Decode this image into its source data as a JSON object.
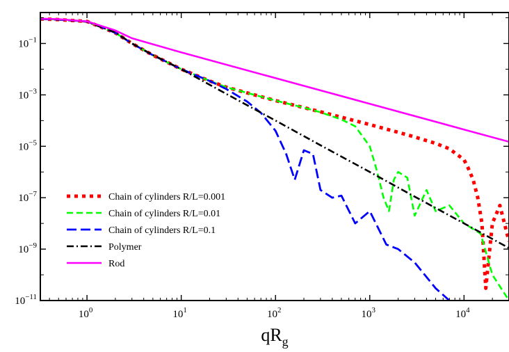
{
  "chart_data": {
    "type": "line",
    "xlabel": {
      "main": "qR",
      "sub": "g"
    },
    "ylabel": "",
    "x_scale": "log",
    "y_scale": "log",
    "xlim": [
      0.32,
      30000
    ],
    "ylim": [
      1e-11,
      1.6
    ],
    "grid": false,
    "legend_position": "lower-left",
    "x_ticks": [
      {
        "value": 1,
        "base": "10",
        "exp": "0"
      },
      {
        "value": 10,
        "base": "10",
        "exp": "1"
      },
      {
        "value": 100,
        "base": "10",
        "exp": "2"
      },
      {
        "value": 1000,
        "base": "10",
        "exp": "3"
      },
      {
        "value": 10000,
        "base": "10",
        "exp": "4"
      }
    ],
    "y_ticks": [
      {
        "value": 1e-11,
        "base": "10",
        "exp": "−11"
      },
      {
        "value": 1e-09,
        "base": "10",
        "exp": "−9"
      },
      {
        "value": 1e-07,
        "base": "10",
        "exp": "−7"
      },
      {
        "value": 1e-05,
        "base": "10",
        "exp": "−5"
      },
      {
        "value": 0.001,
        "base": "10",
        "exp": "−3"
      },
      {
        "value": 0.1,
        "base": "10",
        "exp": "−1"
      }
    ],
    "series": [
      {
        "name": "Chain of cylinders R/L=0.001",
        "color": "#ff0000",
        "dash": "dotted-thick",
        "x": [
          0.32,
          0.5,
          1,
          2,
          3,
          5,
          10,
          20,
          30,
          50,
          100,
          200,
          300,
          500,
          1000,
          2000,
          3000,
          5000,
          7000,
          10000,
          11000,
          12500,
          14000,
          15500,
          17000,
          20000,
          24000,
          30000
        ],
        "y": [
          0.9,
          0.85,
          0.72,
          0.26,
          0.1,
          0.035,
          0.01,
          0.0035,
          0.002,
          0.0012,
          0.0006,
          0.00032,
          0.00022,
          0.000135,
          7e-05,
          3.5e-05,
          2.3e-05,
          1.3e-05,
          8e-06,
          3e-06,
          1.5e-06,
          5e-07,
          1e-07,
          1e-08,
          3e-11,
          1e-08,
          5e-08,
          2e-09
        ]
      },
      {
        "name": "Chain of cylinders R/L=0.01",
        "color": "#00ff00",
        "dash": "dashed",
        "x": [
          0.32,
          0.5,
          1,
          2,
          3,
          5,
          10,
          20,
          30,
          50,
          100,
          200,
          300,
          500,
          700,
          1000,
          1200,
          1400,
          1600,
          1800,
          2000,
          2500,
          3000,
          4000,
          5000,
          7000,
          10000,
          15000,
          20000,
          30000
        ],
        "y": [
          0.9,
          0.85,
          0.72,
          0.26,
          0.1,
          0.035,
          0.01,
          0.0035,
          0.002,
          0.0012,
          0.0006,
          0.00032,
          0.00021,
          0.00011,
          6e-05,
          1e-05,
          1e-06,
          1e-07,
          3e-08,
          5e-07,
          1e-06,
          6e-07,
          2e-08,
          2e-07,
          3e-08,
          5e-08,
          1e-08,
          4e-09,
          1e-10,
          1e-11
        ]
      },
      {
        "name": "Chain of cylinders R/L=0.1",
        "color": "#0000ff",
        "dash": "long-dash",
        "x": [
          0.32,
          0.5,
          1,
          2,
          3,
          5,
          10,
          20,
          30,
          50,
          70,
          100,
          130,
          160,
          200,
          250,
          300,
          400,
          500,
          700,
          1000,
          1500,
          2000,
          3000,
          5000,
          7000
        ],
        "y": [
          0.9,
          0.85,
          0.72,
          0.26,
          0.1,
          0.035,
          0.01,
          0.0035,
          0.0017,
          0.00055,
          0.0002,
          4e-05,
          5e-06,
          5e-07,
          7e-06,
          5e-06,
          2e-07,
          1e-07,
          1.2e-07,
          1e-08,
          3e-08,
          1.5e-09,
          1e-09,
          3e-10,
          3e-11,
          1e-11
        ]
      },
      {
        "name": "Polymer",
        "color": "#000000",
        "dash": "dash-dot",
        "x": [
          0.32,
          0.5,
          1,
          2,
          3,
          5,
          10,
          30,
          100,
          300,
          1000,
          3000,
          10000,
          30000
        ],
        "y": [
          0.92,
          0.86,
          0.7,
          0.27,
          0.1,
          0.036,
          0.01,
          0.0011,
          0.0001,
          1.1e-05,
          1e-06,
          1.1e-07,
          1e-08,
          1.1e-09
        ]
      },
      {
        "name": "Rod",
        "color": "#ff00ff",
        "dash": "solid",
        "x": [
          0.32,
          0.5,
          1,
          2,
          3,
          10,
          100,
          1000,
          10000,
          30000
        ],
        "y": [
          0.92,
          0.88,
          0.72,
          0.32,
          0.16,
          0.045,
          0.0045,
          0.00045,
          4.5e-05,
          1.5e-05
        ]
      }
    ]
  }
}
